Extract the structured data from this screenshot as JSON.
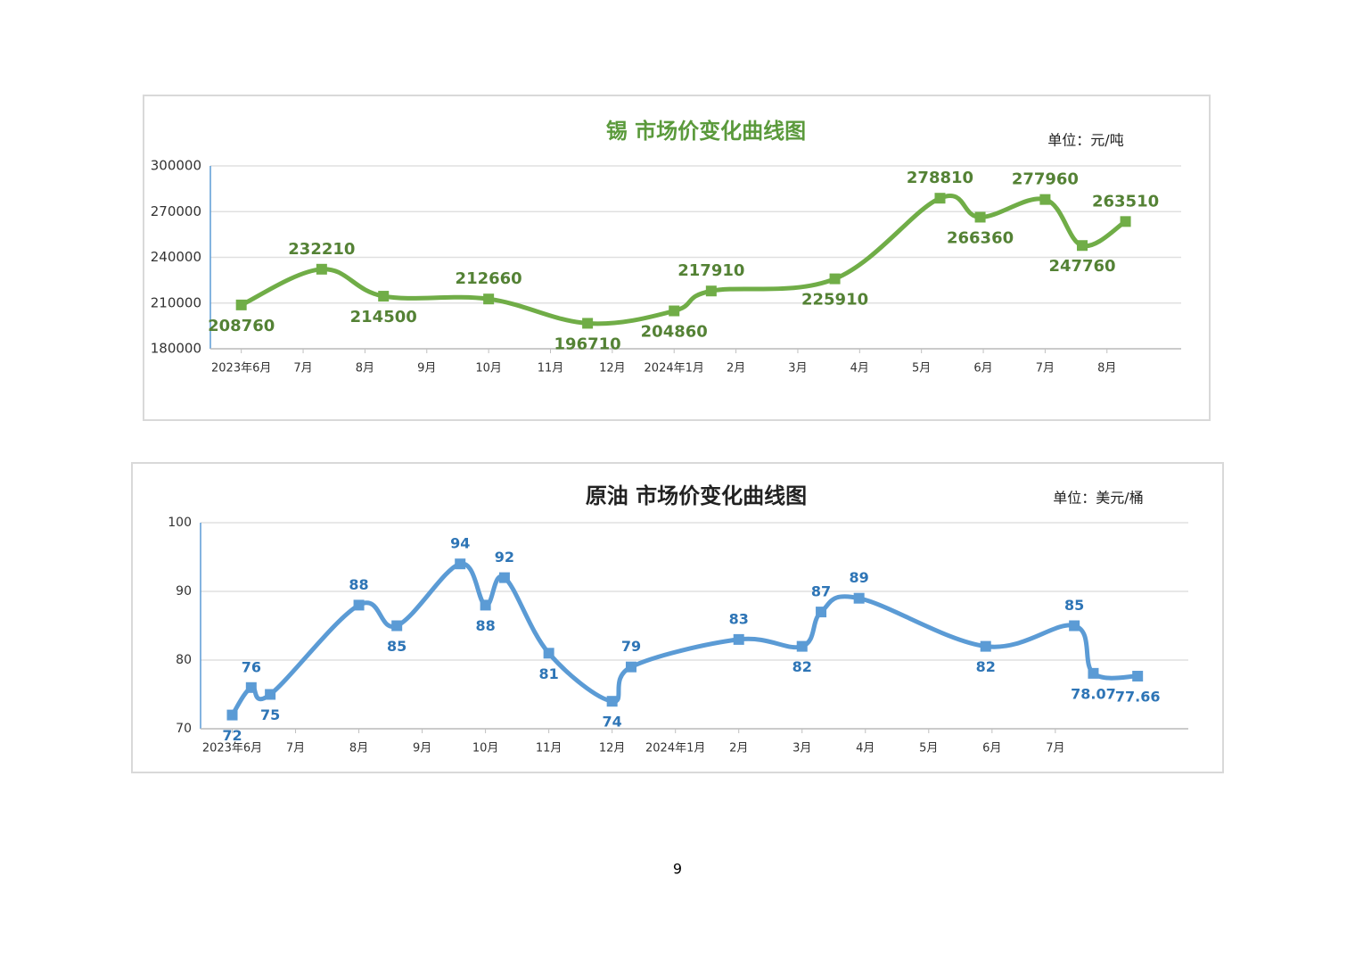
{
  "chart_data": [
    {
      "type": "line",
      "title": "锡  市场价变化曲线图",
      "unit": "单位：元/吨",
      "title_color": "#5b9a3c",
      "color": "#70ad47",
      "label_color": "#548235",
      "xlim": [
        -0.5,
        15.2
      ],
      "xticks": [
        {
          "value": 0,
          "label": "2023年6月"
        },
        {
          "value": 1,
          "label": "7月"
        },
        {
          "value": 2,
          "label": "8月"
        },
        {
          "value": 3,
          "label": "9月"
        },
        {
          "value": 4,
          "label": "10月"
        },
        {
          "value": 5,
          "label": "11月"
        },
        {
          "value": 6,
          "label": "12月"
        },
        {
          "value": 7,
          "label": "2024年1月"
        },
        {
          "value": 8,
          "label": "2月"
        },
        {
          "value": 9,
          "label": "3月"
        },
        {
          "value": 10,
          "label": "4月"
        },
        {
          "value": 11,
          "label": "5月"
        },
        {
          "value": 12,
          "label": "6月"
        },
        {
          "value": 13,
          "label": "7月"
        },
        {
          "value": 14,
          "label": "8月"
        }
      ],
      "ylim": [
        180000,
        300000
      ],
      "yticks": [
        180000,
        210000,
        240000,
        270000,
        300000
      ],
      "grid": true,
      "x": [
        0,
        1.3,
        2.3,
        4.0,
        5.6,
        7.0,
        7.6,
        9.6,
        11.3,
        11.95,
        13.0,
        13.6,
        14.3
      ],
      "values": [
        208760,
        232210,
        214500,
        212660,
        196710,
        204860,
        217910,
        225910,
        278810,
        266360,
        277960,
        247760,
        263510
      ]
    },
    {
      "type": "line",
      "title": "原油  市场价变化曲线图",
      "unit": "单位：美元/桶",
      "title_color": "#222222",
      "color": "#5b9bd5",
      "label_color": "#2e75b6",
      "xlim": [
        -0.5,
        15.1
      ],
      "xticks": [
        {
          "value": 0,
          "label": "2023年6月"
        },
        {
          "value": 1,
          "label": "7月"
        },
        {
          "value": 2,
          "label": "8月"
        },
        {
          "value": 3,
          "label": "9月"
        },
        {
          "value": 4,
          "label": "10月"
        },
        {
          "value": 5,
          "label": "11月"
        },
        {
          "value": 6,
          "label": "12月"
        },
        {
          "value": 7,
          "label": "2024年1月"
        },
        {
          "value": 8,
          "label": "2月"
        },
        {
          "value": 9,
          "label": "3月"
        },
        {
          "value": 10,
          "label": "4月"
        },
        {
          "value": 11,
          "label": "5月"
        },
        {
          "value": 12,
          "label": "6月"
        },
        {
          "value": 13,
          "label": "7月"
        }
      ],
      "ylim": [
        70,
        100
      ],
      "yticks": [
        70,
        80,
        90,
        100
      ],
      "grid": true,
      "x": [
        0,
        0.3,
        0.6,
        2.0,
        2.6,
        3.6,
        4.0,
        4.3,
        5.0,
        6.0,
        6.3,
        8.0,
        9.0,
        9.3,
        9.9,
        11.9,
        13.3,
        13.6,
        14.3
      ],
      "values": [
        72,
        76,
        75,
        88,
        85,
        94,
        88,
        92,
        81,
        74,
        79,
        83,
        82,
        87,
        89,
        82,
        85,
        78.07,
        77.66
      ]
    }
  ],
  "page_number": "9"
}
